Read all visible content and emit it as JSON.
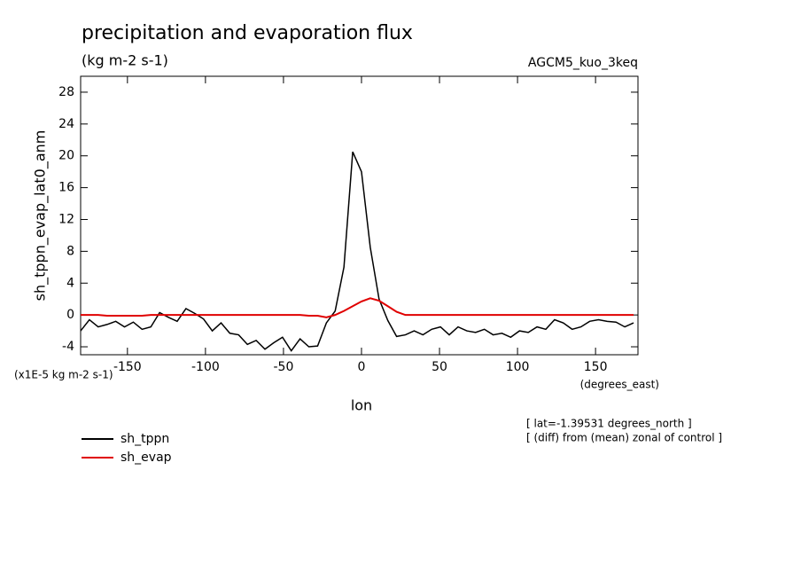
{
  "chart_data": {
    "type": "line",
    "title": "precipitation and evaporation flux",
    "subtitle": "(kg m-2 s-1)",
    "dataset": "AGCM5_kuo_3keq",
    "y_label": "sh_tppn_evap_lat0_anm",
    "x_label": "lon",
    "y_units": "(x1E-5 kg m-2 s-1)",
    "x_units": "(degrees_east)",
    "notes": [
      "[ lat=-1.39531 degrees_north ]",
      "[ (diff) from (mean) zonal of control ]"
    ],
    "x": [
      -180,
      -174.375,
      -168.75,
      -163.125,
      -157.5,
      -151.875,
      -146.25,
      -140.625,
      -135,
      -129.375,
      -123.75,
      -118.125,
      -112.5,
      -106.875,
      -101.25,
      -95.625,
      -90,
      -84.375,
      -78.75,
      -73.125,
      -67.5,
      -61.875,
      -56.25,
      -50.625,
      -45,
      -39.375,
      -33.75,
      -28.125,
      -22.5,
      -16.875,
      -11.25,
      -5.625,
      0,
      5.625,
      11.25,
      16.875,
      22.5,
      28.125,
      33.75,
      39.375,
      45,
      50.625,
      56.25,
      61.875,
      67.5,
      73.125,
      78.75,
      84.375,
      90,
      95.625,
      101.25,
      106.875,
      112.5,
      118.125,
      123.75,
      129.375,
      135,
      140.625,
      146.25,
      151.875,
      157.5,
      163.125,
      168.75,
      174.375
    ],
    "series": [
      {
        "name": "sh_tppn",
        "color": "#000000",
        "values": [
          -2,
          -0.6,
          -1.5,
          -1.2,
          -0.8,
          -1.5,
          -0.9,
          -1.8,
          -1.5,
          0.3,
          -0.3,
          -0.8,
          0.8,
          0.2,
          -0.5,
          -2,
          -1,
          -2.3,
          -2.5,
          -3.7,
          -3.2,
          -4.3,
          -3.5,
          -2.8,
          -4.5,
          -3,
          -4,
          -3.9,
          -1,
          0.5,
          6,
          20.5,
          18,
          8.5,
          2,
          -0.7,
          -2.7,
          -2.5,
          -2,
          -2.5,
          -1.8,
          -1.5,
          -2.5,
          -1.5,
          -2,
          -2.2,
          -1.8,
          -2.5,
          -2.3,
          -2.8,
          -2,
          -2.2,
          -1.5,
          -1.8,
          -0.6,
          -1,
          -1.8,
          -1.5,
          -0.8,
          -0.6,
          -0.8,
          -0.9,
          -1.5,
          -1
        ]
      },
      {
        "name": "sh_evap",
        "color": "#e00000",
        "values": [
          0,
          0,
          0,
          -0.1,
          -0.1,
          -0.1,
          -0.1,
          -0.1,
          0,
          0,
          0,
          0,
          0,
          0,
          0,
          0,
          0,
          0,
          0,
          0,
          0,
          0,
          0,
          0,
          0,
          0,
          -0.1,
          -0.1,
          -0.3,
          0,
          0.5,
          1.1,
          1.7,
          2.1,
          1.8,
          1.1,
          0.4,
          0,
          0,
          0,
          0,
          0,
          0,
          0,
          0,
          0,
          0,
          0,
          0,
          0,
          0,
          0,
          0,
          0,
          0,
          0,
          0,
          0,
          0,
          0,
          0,
          0,
          0,
          0
        ]
      }
    ],
    "xlim": [
      -180,
      177.1875
    ],
    "ylim": [
      -5,
      30
    ],
    "xticks": [
      -150,
      -100,
      -50,
      0,
      50,
      100,
      150
    ],
    "yticks": [
      -4,
      0,
      4,
      8,
      12,
      16,
      20,
      24,
      28
    ]
  }
}
